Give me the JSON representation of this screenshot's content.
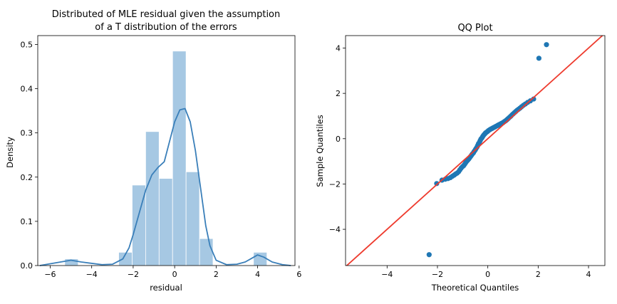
{
  "chart_data": [
    {
      "type": "histogram",
      "title_lines": [
        "Distributed of MLE residual given the assumption",
        "of a T distribution of the errors"
      ],
      "xlabel": "residual",
      "ylabel": "Density",
      "xlim": [
        -6.6,
        5.8
      ],
      "ylim": [
        0,
        0.52
      ],
      "xticks": [
        -6,
        -4,
        -2,
        0,
        2,
        4,
        6
      ],
      "yticks": [
        0.0,
        0.1,
        0.2,
        0.3,
        0.4,
        0.5
      ],
      "bin_edges": [
        -5.3,
        -4.65,
        -4.0,
        -3.35,
        -2.7,
        -2.05,
        -1.4,
        -0.75,
        -0.1,
        0.55,
        1.2,
        1.85,
        2.5,
        3.15,
        3.8,
        4.45
      ],
      "densities": [
        0.015,
        0.0,
        0.0,
        0.0,
        0.03,
        0.182,
        0.303,
        0.197,
        0.485,
        0.212,
        0.061,
        0.0,
        0.0,
        0.0,
        0.03
      ],
      "kde_x": [
        -6.5,
        -5.5,
        -5.0,
        -4.5,
        -3.5,
        -3.0,
        -2.5,
        -2.2,
        -2.0,
        -1.7,
        -1.4,
        -1.1,
        -0.8,
        -0.5,
        -0.25,
        0.0,
        0.25,
        0.5,
        0.75,
        1.0,
        1.25,
        1.5,
        1.7,
        2.0,
        2.5,
        3.0,
        3.4,
        3.7,
        4.0,
        4.3,
        4.7,
        5.2,
        5.6
      ],
      "kde_y": [
        0.0,
        0.008,
        0.012,
        0.008,
        0.002,
        0.003,
        0.015,
        0.04,
        0.07,
        0.12,
        0.17,
        0.205,
        0.222,
        0.235,
        0.28,
        0.325,
        0.352,
        0.355,
        0.325,
        0.26,
        0.175,
        0.09,
        0.045,
        0.012,
        0.002,
        0.003,
        0.008,
        0.016,
        0.024,
        0.019,
        0.008,
        0.002,
        0.0
      ],
      "bar_color": "#a6c8e3",
      "line_color": "#3a7fb9"
    },
    {
      "type": "scatter",
      "title": "QQ Plot",
      "xlabel": "Theoretical Quantiles",
      "ylabel": "Sample Quantiles",
      "xlim": [
        -5.65,
        4.65
      ],
      "ylim": [
        -5.6,
        4.55
      ],
      "xticks": [
        -4,
        -2,
        0,
        2,
        4
      ],
      "yticks": [
        -4,
        -2,
        0,
        2,
        4
      ],
      "reference_line": {
        "slope": 1,
        "intercept": 0,
        "color": "#ee3b2e"
      },
      "point_color": "#1f77b4",
      "points": [
        [
          -2.33,
          -5.12
        ],
        [
          -2.03,
          -1.98
        ],
        [
          -1.82,
          -1.83
        ],
        [
          -1.69,
          -1.79
        ],
        [
          -1.58,
          -1.76
        ],
        [
          -1.49,
          -1.72
        ],
        [
          -1.41,
          -1.66
        ],
        [
          -1.34,
          -1.61
        ],
        [
          -1.28,
          -1.56
        ],
        [
          -1.22,
          -1.52
        ],
        [
          -1.16,
          -1.46
        ],
        [
          -1.11,
          -1.38
        ],
        [
          -1.06,
          -1.3
        ],
        [
          -1.01,
          -1.24
        ],
        [
          -0.96,
          -1.19
        ],
        [
          -0.92,
          -1.13
        ],
        [
          -0.88,
          -1.06
        ],
        [
          -0.84,
          -1.0
        ],
        [
          -0.8,
          -0.95
        ],
        [
          -0.76,
          -0.9
        ],
        [
          -0.72,
          -0.84
        ],
        [
          -0.68,
          -0.78
        ],
        [
          -0.64,
          -0.72
        ],
        [
          -0.61,
          -0.67
        ],
        [
          -0.57,
          -0.62
        ],
        [
          -0.54,
          -0.56
        ],
        [
          -0.5,
          -0.5
        ],
        [
          -0.47,
          -0.44
        ],
        [
          -0.43,
          -0.37
        ],
        [
          -0.4,
          -0.3
        ],
        [
          -0.37,
          -0.22
        ],
        [
          -0.33,
          -0.15
        ],
        [
          -0.3,
          -0.08
        ],
        [
          -0.27,
          -0.01
        ],
        [
          -0.23,
          0.04
        ],
        [
          -0.2,
          0.1
        ],
        [
          -0.17,
          0.15
        ],
        [
          -0.13,
          0.2
        ],
        [
          -0.1,
          0.24
        ],
        [
          -0.07,
          0.27
        ],
        [
          -0.03,
          0.3
        ],
        [
          0.0,
          0.33
        ],
        [
          0.03,
          0.36
        ],
        [
          0.07,
          0.39
        ],
        [
          0.1,
          0.41
        ],
        [
          0.13,
          0.43
        ],
        [
          0.17,
          0.45
        ],
        [
          0.2,
          0.47
        ],
        [
          0.23,
          0.49
        ],
        [
          0.27,
          0.51
        ],
        [
          0.3,
          0.53
        ],
        [
          0.33,
          0.55
        ],
        [
          0.37,
          0.57
        ],
        [
          0.4,
          0.59
        ],
        [
          0.43,
          0.61
        ],
        [
          0.47,
          0.63
        ],
        [
          0.5,
          0.65
        ],
        [
          0.54,
          0.67
        ],
        [
          0.57,
          0.69
        ],
        [
          0.61,
          0.71
        ],
        [
          0.64,
          0.74
        ],
        [
          0.68,
          0.77
        ],
        [
          0.72,
          0.8
        ],
        [
          0.76,
          0.84
        ],
        [
          0.8,
          0.88
        ],
        [
          0.84,
          0.92
        ],
        [
          0.88,
          0.96
        ],
        [
          0.92,
          1.0
        ],
        [
          0.96,
          1.05
        ],
        [
          1.01,
          1.1
        ],
        [
          1.06,
          1.15
        ],
        [
          1.11,
          1.2
        ],
        [
          1.16,
          1.25
        ],
        [
          1.22,
          1.3
        ],
        [
          1.28,
          1.35
        ],
        [
          1.34,
          1.41
        ],
        [
          1.41,
          1.47
        ],
        [
          1.49,
          1.53
        ],
        [
          1.58,
          1.6
        ],
        [
          1.69,
          1.67
        ],
        [
          1.82,
          1.75
        ],
        [
          2.03,
          3.55
        ],
        [
          2.33,
          4.15
        ]
      ]
    }
  ]
}
